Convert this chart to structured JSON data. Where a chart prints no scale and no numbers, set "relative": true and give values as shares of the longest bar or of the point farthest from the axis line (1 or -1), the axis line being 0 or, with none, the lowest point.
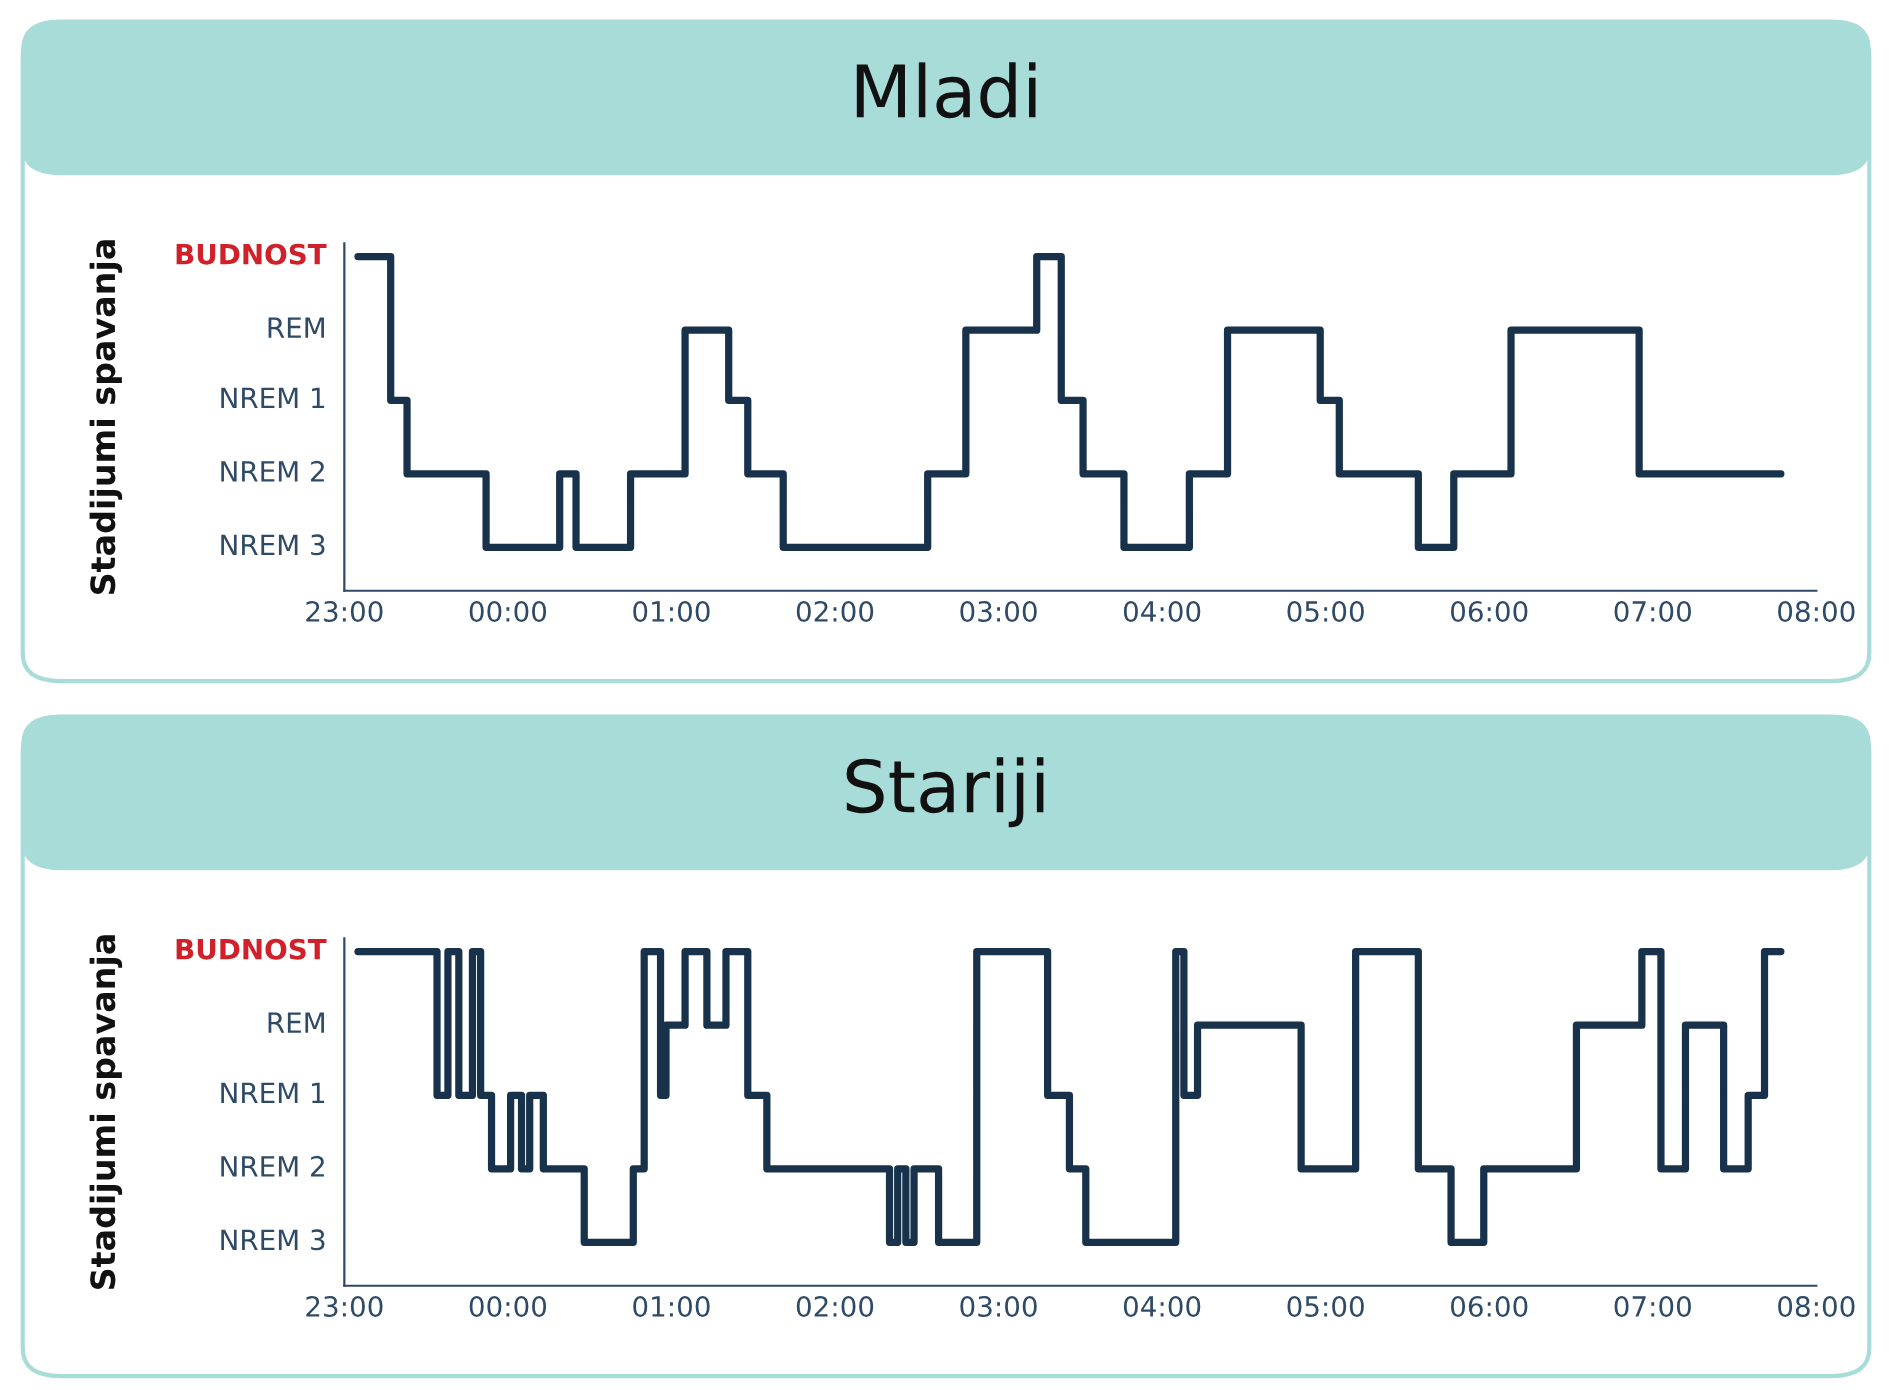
{
  "chart_data": [
    {
      "type": "step",
      "title": "Mladi",
      "ylabel": "Stadijumi spavanja",
      "series": [
        {
          "color": "#17324a",
          "x": [
            "2000-01-01T23:05",
            "2000-01-01T23:17",
            "2000-01-01T23:23",
            "2000-01-01T23:52",
            "2000-01-02T00:19",
            "2000-01-02T00:25",
            "2000-01-02T00:45",
            "2000-01-02T01:05",
            "2000-01-02T01:21",
            "2000-01-02T01:28",
            "2000-01-02T01:41",
            "2000-01-02T02:34",
            "2000-01-02T02:48",
            "2000-01-02T03:14",
            "2000-01-02T03:23",
            "2000-01-02T03:31",
            "2000-01-02T03:46",
            "2000-01-02T04:10",
            "2000-01-02T04:24",
            "2000-01-02T04:58",
            "2000-01-02T05:05",
            "2000-01-02T05:34",
            "2000-01-02T05:47",
            "2000-01-02T06:08",
            "2000-01-02T06:55",
            "2000-01-02T07:47"
          ],
          "values": [
            1,
            0.57,
            0.35,
            0.13,
            0.35,
            0.13,
            0.35,
            0.78,
            0.57,
            0.35,
            0.13,
            0.35,
            0.78,
            1,
            0.57,
            0.35,
            0.13,
            0.35,
            0.78,
            0.57,
            0.35,
            0.13,
            0.35,
            0.78,
            0.35,
            0.35
          ]
        }
      ],
      "xlim": [
        "2000-01-01T23:00",
        "2000-01-02T08:00"
      ],
      "xticks": [
        {
          "value": "2000-01-01T23:00",
          "label": "23:00"
        },
        {
          "value": "2000-01-02T00:00",
          "label": "00:00"
        },
        {
          "value": "2000-01-02T01:00",
          "label": "01:00"
        },
        {
          "value": "2000-01-02T02:00",
          "label": "02:00"
        },
        {
          "value": "2000-01-02T03:00",
          "label": "03:00"
        },
        {
          "value": "2000-01-02T04:00",
          "label": "04:00"
        },
        {
          "value": "2000-01-02T05:00",
          "label": "05:00"
        },
        {
          "value": "2000-01-02T06:00",
          "label": "06:00"
        },
        {
          "value": "2000-01-02T07:00",
          "label": "07:00"
        },
        {
          "value": "2000-01-02T08:00",
          "label": "08:00"
        }
      ],
      "relative": true,
      "annotations": [
        "BUDNOST",
        "REM",
        "NREM 1",
        "NREM 2",
        "NREM 3"
      ]
    },
    {
      "type": "step",
      "title": "Stariji",
      "ylabel": "Stadijumi spavanja",
      "series": [
        {
          "color": "#17324a",
          "x": [
            "2000-01-01T23:05",
            "2000-01-01T23:34",
            "2000-01-01T23:38",
            "2000-01-01T23:42",
            "2000-01-01T23:47",
            "2000-01-01T23:50",
            "2000-01-01T23:54",
            "2000-01-02T00:01",
            "2000-01-02T00:05",
            "2000-01-02T00:08",
            "2000-01-02T00:13",
            "2000-01-02T00:28",
            "2000-01-02T00:46",
            "2000-01-02T00:50",
            "2000-01-02T00:56",
            "2000-01-02T00:58",
            "2000-01-02T01:05",
            "2000-01-02T01:13",
            "2000-01-02T01:20",
            "2000-01-02T01:28",
            "2000-01-02T01:35",
            "2000-01-02T02:20",
            "2000-01-02T02:23",
            "2000-01-02T02:26",
            "2000-01-02T02:29",
            "2000-01-02T02:38",
            "2000-01-02T02:52",
            "2000-01-02T03:18",
            "2000-01-02T03:26",
            "2000-01-02T03:32",
            "2000-01-02T04:05",
            "2000-01-02T04:08",
            "2000-01-02T04:13",
            "2000-01-02T04:51",
            "2000-01-02T05:11",
            "2000-01-02T05:34",
            "2000-01-02T05:46",
            "2000-01-02T05:58",
            "2000-01-02T06:32",
            "2000-01-02T06:56",
            "2000-01-02T07:03",
            "2000-01-02T07:12",
            "2000-01-02T07:26",
            "2000-01-02T07:35",
            "2000-01-02T07:41",
            "2000-01-02T07:47"
          ],
          "values": [
            1,
            0.57,
            1,
            0.57,
            1,
            0.57,
            0.35,
            0.57,
            0.35,
            0.57,
            0.35,
            0.13,
            0.35,
            1,
            0.57,
            0.78,
            1,
            0.78,
            1,
            0.57,
            0.35,
            0.13,
            0.35,
            0.13,
            0.35,
            0.13,
            1,
            0.57,
            0.35,
            0.13,
            1,
            0.57,
            0.78,
            0.35,
            1,
            0.35,
            0.13,
            0.35,
            0.78,
            1,
            0.35,
            0.78,
            0.35,
            0.57,
            1,
            1
          ]
        }
      ],
      "xlim": [
        "2000-01-01T23:00",
        "2000-01-02T08:00"
      ],
      "xticks": [
        {
          "value": "2000-01-01T23:00",
          "label": "23:00"
        },
        {
          "value": "2000-01-02T00:00",
          "label": "00:00"
        },
        {
          "value": "2000-01-02T01:00",
          "label": "01:00"
        },
        {
          "value": "2000-01-02T02:00",
          "label": "02:00"
        },
        {
          "value": "2000-01-02T03:00",
          "label": "03:00"
        },
        {
          "value": "2000-01-02T04:00",
          "label": "04:00"
        },
        {
          "value": "2000-01-02T05:00",
          "label": "05:00"
        },
        {
          "value": "2000-01-02T06:00",
          "label": "06:00"
        },
        {
          "value": "2000-01-02T07:00",
          "label": "07:00"
        },
        {
          "value": "2000-01-02T08:00",
          "label": "08:00"
        }
      ],
      "relative": true,
      "annotations": [
        "BUDNOST",
        "REM",
        "NREM 1",
        "NREM 2",
        "NREM 3"
      ]
    }
  ]
}
